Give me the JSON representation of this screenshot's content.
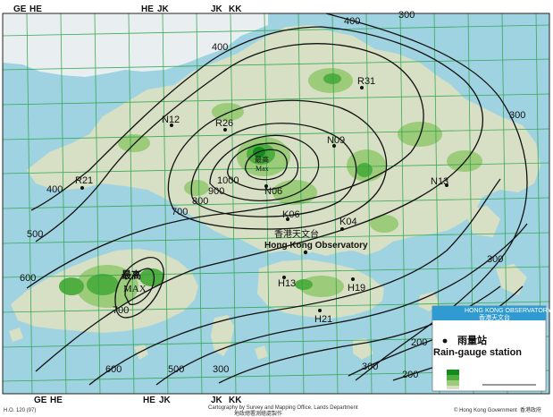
{
  "grid_labels": {
    "top": [
      "GE",
      "HE",
      "HE",
      "JK",
      "JK",
      "KK"
    ],
    "bottom": [
      "GE",
      "HE",
      "HE",
      "JK",
      "JK",
      "KK"
    ]
  },
  "contour_labels": [
    "300",
    "300",
    "400",
    "400",
    "400",
    "500",
    "500",
    "600",
    "600",
    "700",
    "700",
    "800",
    "900",
    "1000",
    "300",
    "200",
    "200",
    "300",
    "300"
  ],
  "max_labels": [
    {
      "zh": "最高",
      "en": "MAX"
    },
    {
      "zh": "最高",
      "en": "Max"
    }
  ],
  "stations": [
    "R31",
    "N12",
    "R26",
    "N09",
    "R21",
    "N06",
    "N13",
    "K06",
    "K04",
    "H13",
    "H19",
    "H21"
  ],
  "observatory": {
    "zh": "香港天文台",
    "en": "Hong Kong Observatory"
  },
  "legend": {
    "title_en": "HONG KONG OBSERVATORY",
    "title_zh": "香港天文台",
    "station_zh": "雨量站",
    "station_en": "Rain-gauge station"
  },
  "footer": {
    "left_code": "H.O. 120 (97)",
    "center_en": "Cartography by Survey and Mapping Office, Lands Department",
    "center_zh": "地政總署測繪處製作",
    "right_en": "© Hong Kong Government",
    "right_zh": "香港政府"
  },
  "colors": {
    "sea": "#9fd3e2",
    "land": "#d7dfc4",
    "green_light": "#9ccb7a",
    "green_mid": "#4fae3f",
    "green_dark": "#138a1c",
    "grid": "#2aa54a",
    "legend_header": "#2f9bd0"
  }
}
